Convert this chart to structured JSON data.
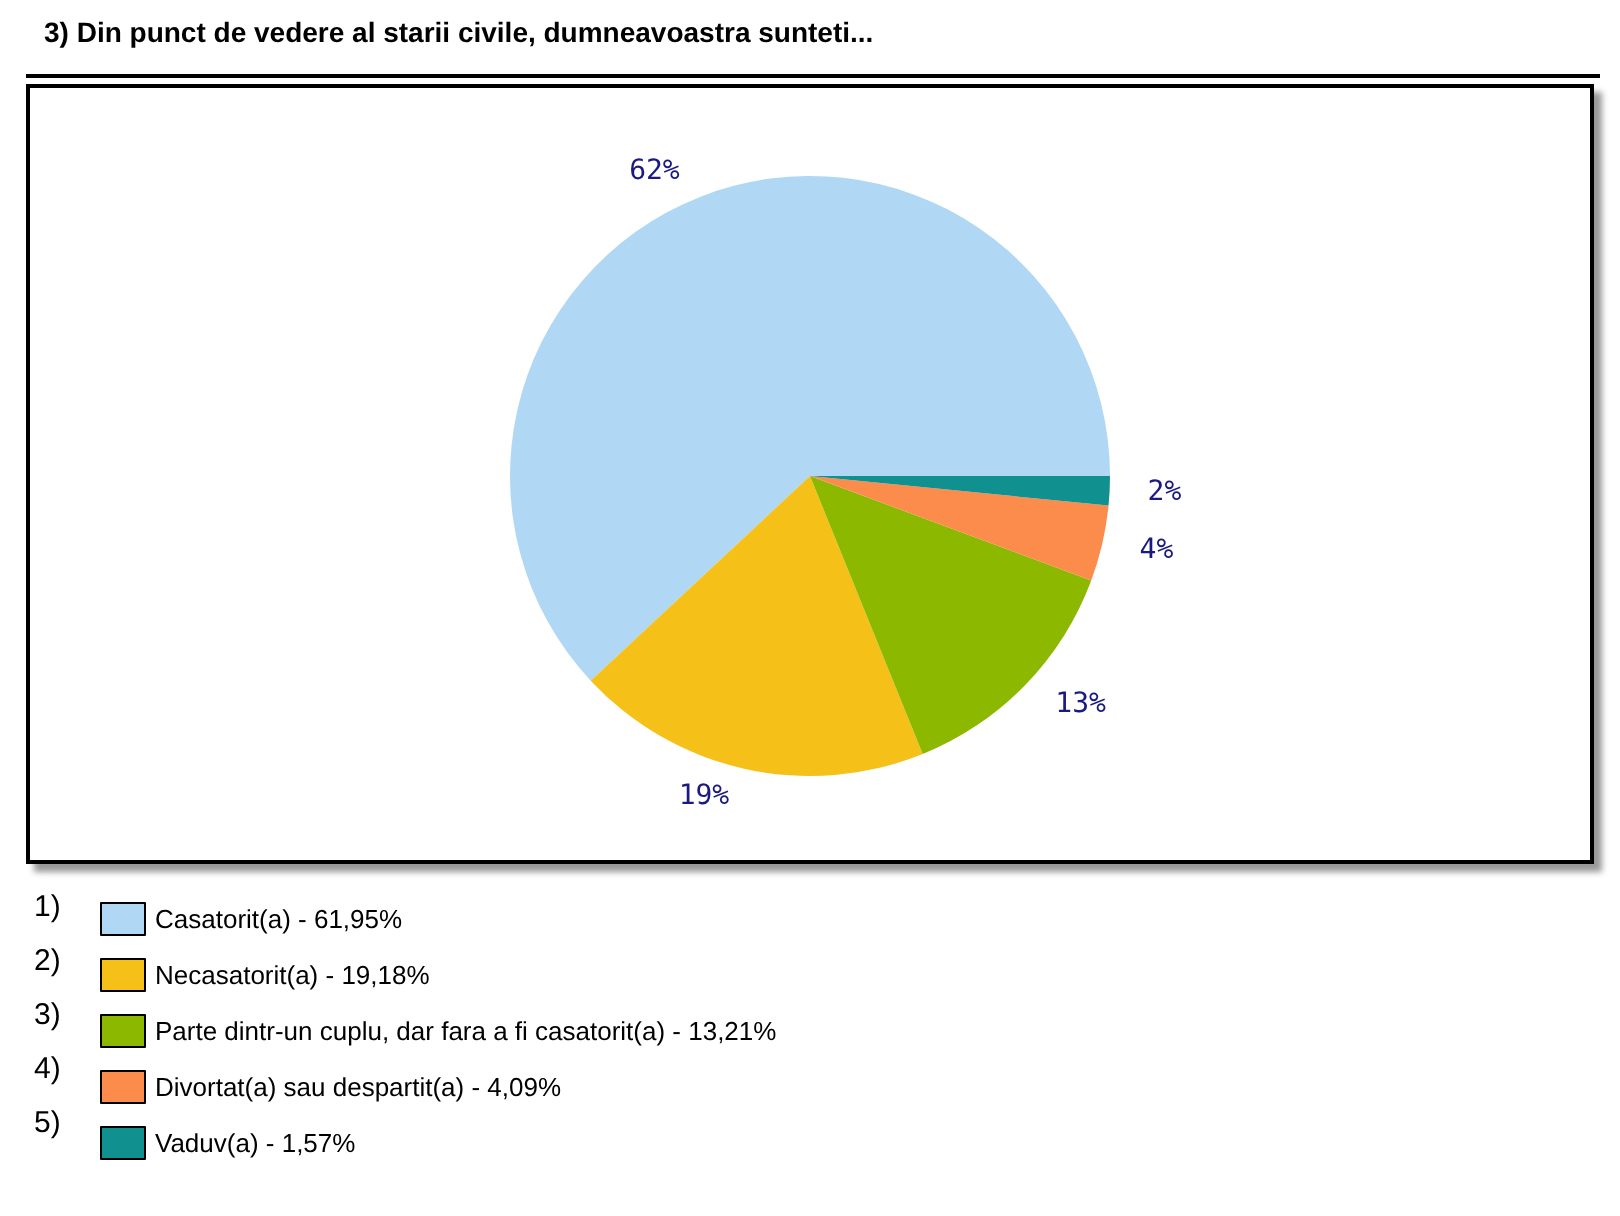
{
  "chart_data": {
    "type": "pie",
    "title": "3) Din punct de vedere al starii civile, dumneavoastra sunteti...",
    "categories": [
      "Casatorit(a) - 61,95%",
      "Necasatorit(a) - 19,18%",
      "Parte dintr-un cuplu, dar fara a fi casatorit(a) - 13,21%",
      "Divortat(a) sau despartit(a) - 4,09%",
      "Vaduv(a) - 1,57%"
    ],
    "values": [
      61.95,
      19.18,
      13.21,
      4.09,
      1.57
    ],
    "colors": [
      "#b0d8f5",
      "#f5c018",
      "#8cb800",
      "#fb8c4c",
      "#10908f"
    ],
    "value_labels": [
      "62%",
      "19%",
      "13%",
      "4%",
      "2%"
    ],
    "annotations": [
      "1)",
      "2)",
      "3)",
      "4)",
      "5)"
    ],
    "legend": "bottom left"
  }
}
